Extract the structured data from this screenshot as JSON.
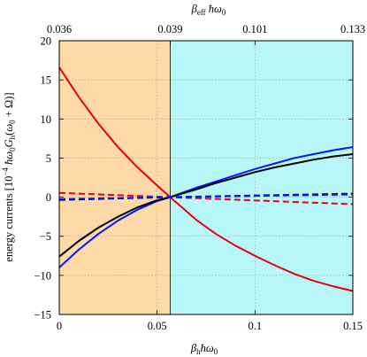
{
  "chart_data": {
    "type": "line",
    "xlabel": "β_h ħω_0",
    "ylabel": "energy currents [10^{-4} ħω_0 G_h(ω_0 + Ω)]",
    "x2label": "β_eff ħω_0",
    "xlim": [
      0,
      0.15
    ],
    "ylim": [
      -15,
      20
    ],
    "x_ticks": [
      "0",
      "0.05",
      "0.1",
      "0.15"
    ],
    "y_ticks": [
      "−15",
      "−10",
      "−5",
      "0",
      "5",
      "10",
      "15",
      "20"
    ],
    "top_ticks": [
      {
        "x": 0,
        "label": "0.036"
      },
      {
        "x": 0.0567,
        "label": "0.039"
      },
      {
        "x": 0.1,
        "label": "0.101"
      },
      {
        "x": 0.15,
        "label": "0.133"
      }
    ],
    "grid": true,
    "regions": [
      {
        "from": 0,
        "to": 0.0567,
        "color": "#fcd9a6"
      },
      {
        "from": 0.0567,
        "to": 0.15,
        "color": "#b7f7f7"
      }
    ],
    "series": [
      {
        "color": "#e8000b",
        "dash": false,
        "x": [
          0,
          0.01,
          0.02,
          0.03,
          0.04,
          0.05,
          0.0567,
          0.07,
          0.08,
          0.09,
          0.1,
          0.11,
          0.12,
          0.13,
          0.14,
          0.15
        ],
        "y": [
          16.6,
          12.8,
          9.4,
          6.4,
          3.8,
          1.5,
          0,
          -2.9,
          -4.7,
          -6.2,
          -7.5,
          -8.7,
          -9.8,
          -10.7,
          -11.4,
          -12.0
        ]
      },
      {
        "color": "#e8000b",
        "dash": true,
        "x": [
          0,
          0.0567,
          0.15
        ],
        "y": [
          0.55,
          0,
          -0.9
        ]
      },
      {
        "color": "#0018ff",
        "dash": false,
        "x": [
          0,
          0.01,
          0.02,
          0.03,
          0.04,
          0.05,
          0.0567,
          0.07,
          0.08,
          0.09,
          0.1,
          0.11,
          0.12,
          0.13,
          0.14,
          0.15
        ],
        "y": [
          -9.0,
          -6.7,
          -4.7,
          -3.0,
          -1.6,
          -0.5,
          0,
          1.2,
          2.0,
          2.8,
          3.6,
          4.3,
          5.0,
          5.5,
          6.0,
          6.4
        ]
      },
      {
        "color": "#000000",
        "dash": false,
        "x": [
          0,
          0.01,
          0.02,
          0.03,
          0.04,
          0.05,
          0.0567,
          0.07,
          0.08,
          0.09,
          0.1,
          0.11,
          0.12,
          0.13,
          0.14,
          0.15
        ],
        "y": [
          -7.6,
          -5.6,
          -3.9,
          -2.5,
          -1.3,
          -0.4,
          0,
          1.0,
          1.8,
          2.5,
          3.2,
          3.8,
          4.3,
          4.8,
          5.2,
          5.5
        ]
      },
      {
        "color": "#000000",
        "dash": true,
        "x": [
          0,
          0.0567,
          0.15
        ],
        "y": [
          -0.35,
          0,
          0.45
        ]
      },
      {
        "color": "#0018ff",
        "dash": true,
        "x": [
          0,
          0.0567,
          0.15
        ],
        "y": [
          -0.25,
          0,
          0.35
        ]
      }
    ]
  }
}
